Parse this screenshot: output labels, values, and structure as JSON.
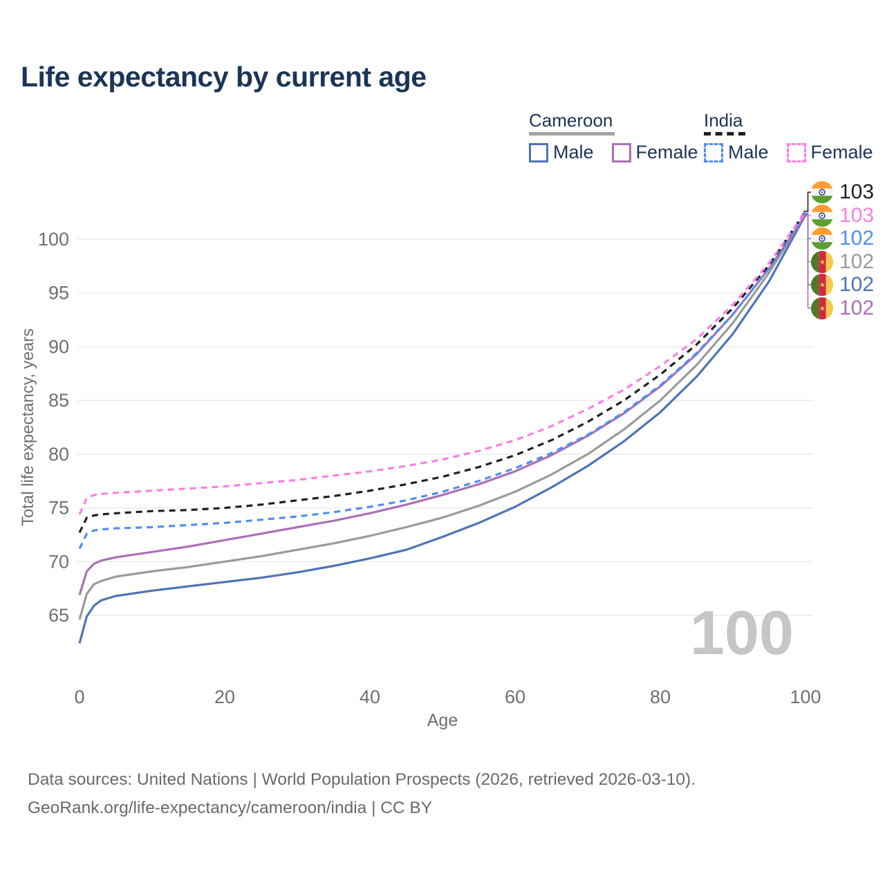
{
  "title": "Life expectancy by current age",
  "legend": {
    "groups": [
      {
        "name": "Cameroon",
        "line_style": "solid",
        "swatch_style": "solid-underline",
        "items": [
          {
            "label": "Male",
            "color": "#4d74b5"
          },
          {
            "label": "Female",
            "color": "#ab6fb5"
          }
        ]
      },
      {
        "name": "India",
        "line_style": "dashed",
        "swatch_style": "dashed-underline",
        "items": [
          {
            "label": "Male",
            "color": "#4f8df2"
          },
          {
            "label": "Female",
            "color": "#fb7ee4"
          }
        ]
      }
    ]
  },
  "chart_data": {
    "type": "line",
    "title": "Life expectancy by current age",
    "xlabel": "Age",
    "ylabel": "Total life expectancy, years",
    "x_ticks": [
      0,
      20,
      40,
      60,
      80,
      100
    ],
    "y_ticks": [
      65,
      70,
      75,
      80,
      85,
      90,
      95,
      100
    ],
    "xlim": [
      0,
      100
    ],
    "ylim": [
      62,
      103
    ],
    "grid": "horizontal",
    "legend_position": "top-right",
    "watermark": "100",
    "x": [
      0,
      1,
      2,
      3,
      5,
      10,
      15,
      20,
      25,
      30,
      35,
      40,
      45,
      50,
      55,
      60,
      65,
      70,
      75,
      80,
      85,
      90,
      95,
      100
    ],
    "series": [
      {
        "name": "Cameroon Male",
        "country": "Cameroon",
        "sex": "Male",
        "color": "#4d74b5",
        "dashed": false,
        "values": [
          62.4,
          64.9,
          65.9,
          66.4,
          66.8,
          67.3,
          67.7,
          68.1,
          68.5,
          69.0,
          69.6,
          70.3,
          71.1,
          72.3,
          73.6,
          75.1,
          76.9,
          78.9,
          81.2,
          83.9,
          87.2,
          91.2,
          96.1,
          102.25
        ]
      },
      {
        "name": "Cameroon Both sexes",
        "country": "Cameroon",
        "sex": "Both",
        "color": "#9a9a9a",
        "dashed": false,
        "values": [
          64.6,
          67.0,
          67.9,
          68.2,
          68.6,
          69.1,
          69.5,
          70.0,
          70.5,
          71.1,
          71.7,
          72.4,
          73.2,
          74.1,
          75.2,
          76.5,
          78.1,
          80.0,
          82.3,
          85.0,
          88.3,
          92.2,
          96.9,
          102.3
        ]
      },
      {
        "name": "Cameroon Female",
        "country": "Cameroon",
        "sex": "Female",
        "color": "#ab6fb5",
        "dashed": false,
        "values": [
          66.9,
          69.1,
          69.8,
          70.1,
          70.4,
          70.9,
          71.4,
          72.0,
          72.6,
          73.2,
          73.8,
          74.5,
          75.3,
          76.2,
          77.2,
          78.4,
          79.9,
          81.7,
          83.8,
          86.3,
          89.3,
          93.0,
          97.3,
          102.2
        ]
      },
      {
        "name": "India Male",
        "country": "India",
        "sex": "Male",
        "color": "#4f8df2",
        "dashed": true,
        "values": [
          71.2,
          72.6,
          72.9,
          73.0,
          73.1,
          73.2,
          73.4,
          73.6,
          73.9,
          74.2,
          74.6,
          75.1,
          75.7,
          76.5,
          77.5,
          78.7,
          80.1,
          81.8,
          83.9,
          86.4,
          89.4,
          93.0,
          97.3,
          102.4
        ]
      },
      {
        "name": "India Both sexes",
        "country": "India",
        "sex": "Both",
        "color": "#1f1f1f",
        "dashed": true,
        "values": [
          72.7,
          74.1,
          74.3,
          74.4,
          74.5,
          74.7,
          74.8,
          75.0,
          75.3,
          75.7,
          76.1,
          76.6,
          77.2,
          77.9,
          78.8,
          79.9,
          81.3,
          83.0,
          85.0,
          87.4,
          90.2,
          93.6,
          97.6,
          102.6
        ]
      },
      {
        "name": "India Female",
        "country": "India",
        "sex": "Female",
        "color": "#fb7ee4",
        "dashed": true,
        "values": [
          74.4,
          75.9,
          76.2,
          76.3,
          76.4,
          76.6,
          76.8,
          77.0,
          77.3,
          77.6,
          78.0,
          78.4,
          78.9,
          79.5,
          80.3,
          81.3,
          82.6,
          84.2,
          86.0,
          88.2,
          90.7,
          93.9,
          97.8,
          102.52
        ]
      }
    ],
    "end_labels": [
      {
        "series": "India Both sexes",
        "flag": "india",
        "value": "103",
        "color": "#1f1f1f"
      },
      {
        "series": "India Female",
        "flag": "india",
        "value": "103",
        "color": "#fb7ee4"
      },
      {
        "series": "India Male",
        "flag": "india",
        "value": "102",
        "color": "#4f8df2"
      },
      {
        "series": "Cameroon Both sexes",
        "flag": "cameroon",
        "value": "102",
        "color": "#9a9a9a"
      },
      {
        "series": "Cameroon Male",
        "flag": "cameroon",
        "value": "102",
        "color": "#4d74b5"
      },
      {
        "series": "Cameroon Female",
        "flag": "cameroon",
        "value": "102",
        "color": "#ab6fb5"
      }
    ]
  },
  "footer": {
    "line1": "Data sources: United Nations | World Population Prospects (2026, retrieved 2026-03-10).",
    "line2": "GeoRank.org/life-expectancy/cameroon/india | CC BY"
  }
}
